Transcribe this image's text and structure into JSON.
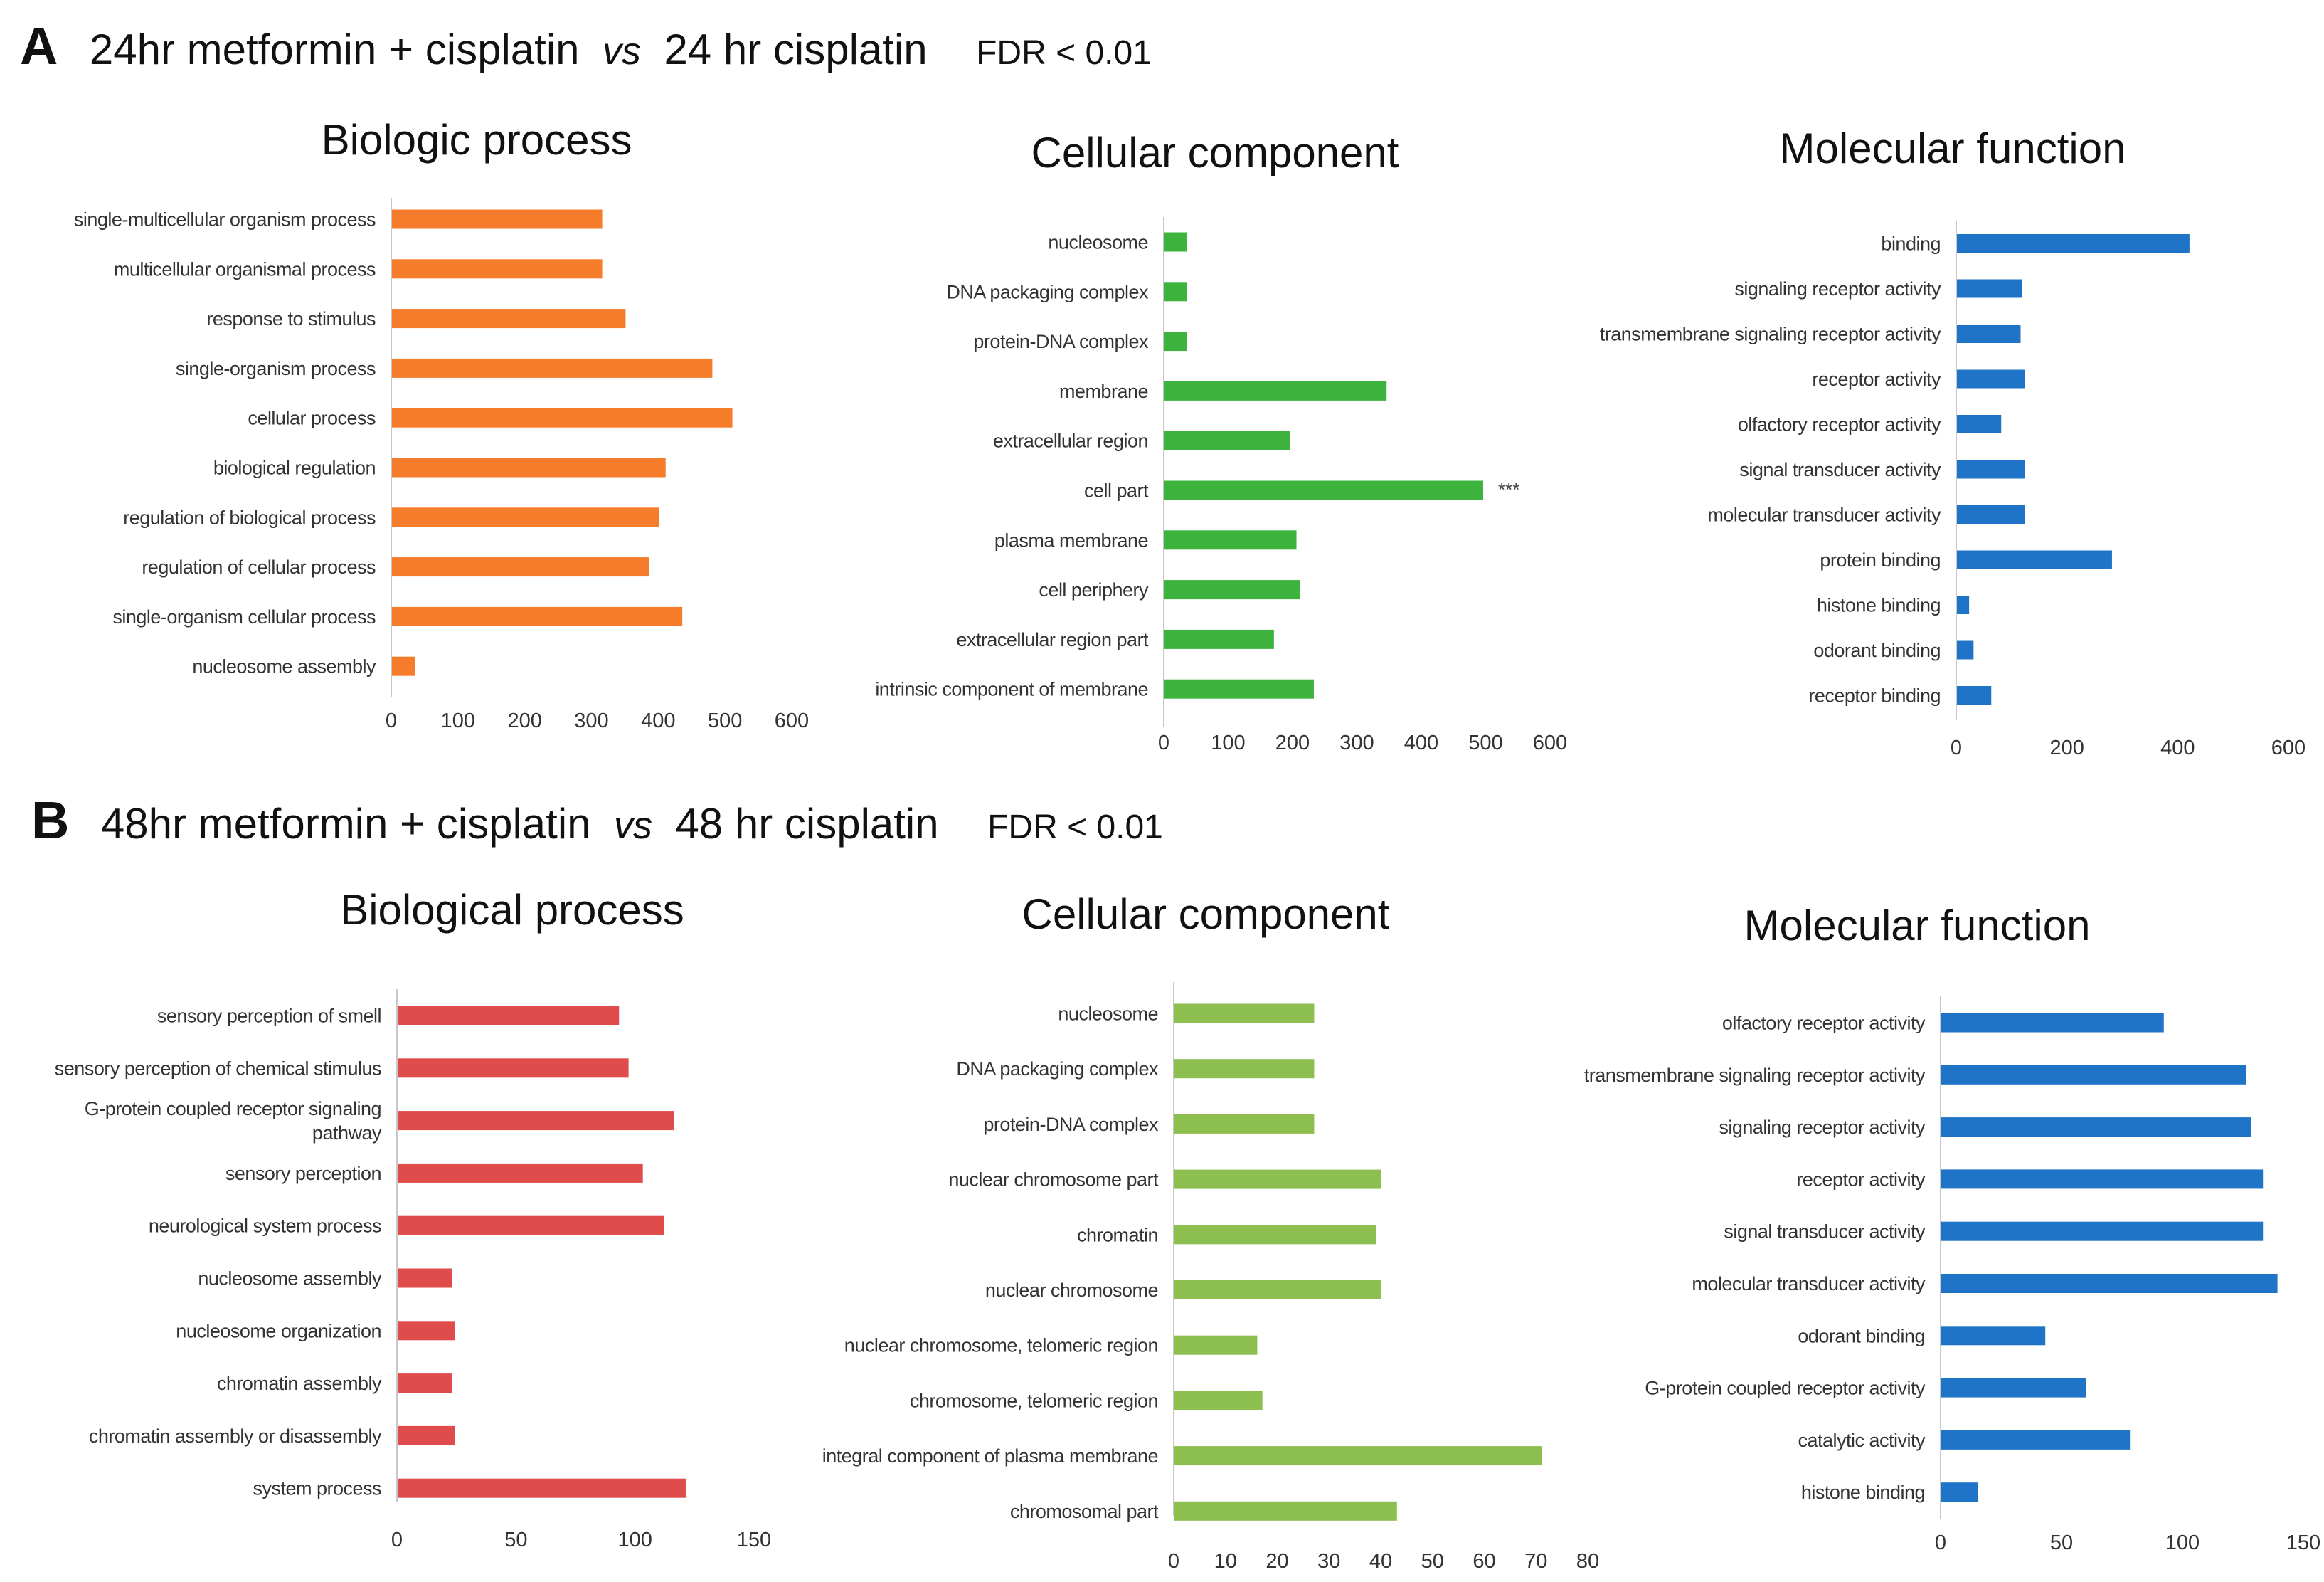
{
  "panels": {
    "a": {
      "letter": "A",
      "title_left": "24hr metformin + cisplatin",
      "vs": "vs",
      "title_right": "24 hr cisplatin",
      "fdr": "FDR < 0.01"
    },
    "b": {
      "letter": "B",
      "title_left": "48hr metformin + cisplatin",
      "vs": "vs",
      "title_right": "48 hr cisplatin",
      "fdr": "FDR < 0.01"
    }
  },
  "chart_data": [
    {
      "id": "a1",
      "type": "bar",
      "orientation": "horizontal",
      "title": "Biologic process",
      "color": "#F47C2A",
      "categories": [
        "single-multicellular organism process",
        "multicellular organismal process",
        "response to stimulus",
        "single-organism process",
        "cellular process",
        "biological regulation",
        "regulation of biological process",
        "regulation of cellular process",
        "single-organism cellular process",
        "nucleosome assembly"
      ],
      "values": [
        315,
        315,
        350,
        480,
        510,
        410,
        400,
        385,
        435,
        35
      ],
      "xlim": [
        0,
        600
      ],
      "ticks": [
        0,
        100,
        200,
        300,
        400,
        500,
        600
      ]
    },
    {
      "id": "a2",
      "type": "bar",
      "orientation": "horizontal",
      "title": "Cellular component",
      "color": "#3DB33D",
      "categories": [
        "nucleosome",
        "DNA packaging complex",
        "protein-DNA complex",
        "membrane",
        "extracellular region",
        "cell part",
        "plasma membrane",
        "cell periphery",
        "extracellular region part",
        "intrinsic component of membrane"
      ],
      "values": [
        35,
        35,
        35,
        345,
        195,
        495,
        205,
        210,
        170,
        232
      ],
      "xlim": [
        0,
        600
      ],
      "ticks": [
        0,
        100,
        200,
        300,
        400,
        500,
        600
      ],
      "annotations": [
        {
          "category": "cell part",
          "text": "***"
        }
      ]
    },
    {
      "id": "a3",
      "type": "bar",
      "orientation": "horizontal",
      "title": "Molecular function",
      "color": "#1F74C8",
      "categories": [
        "binding",
        "signaling receptor activity",
        "transmembrane signaling receptor activity",
        "receptor activity",
        "olfactory receptor activity",
        "signal transducer activity",
        "molecular transducer activity",
        "protein binding",
        "histone binding",
        "odorant binding",
        "receptor binding"
      ],
      "values": [
        420,
        118,
        115,
        123,
        80,
        123,
        123,
        280,
        22,
        30,
        62
      ],
      "xlim": [
        0,
        600
      ],
      "ticks": [
        0,
        200,
        400,
        600
      ]
    },
    {
      "id": "b1",
      "type": "bar",
      "orientation": "horizontal",
      "title": "Biological process",
      "color": "#E04B4B",
      "categories": [
        "sensory perception of smell",
        "sensory perception of chemical stimulus",
        "G-protein coupled receptor signaling pathway",
        "sensory perception",
        "neurological system process",
        "nucleosome assembly",
        "nucleosome organization",
        "chromatin assembly",
        "chromatin assembly or disassembly",
        "system process"
      ],
      "values": [
        93,
        97,
        116,
        103,
        112,
        23,
        24,
        23,
        24,
        121
      ],
      "xlim": [
        0,
        150
      ],
      "ticks": [
        0,
        50,
        100,
        150
      ]
    },
    {
      "id": "b2",
      "type": "bar",
      "orientation": "horizontal",
      "title": "Cellular component",
      "color": "#8CBF4F",
      "categories": [
        "nucleosome",
        "DNA packaging complex",
        "protein-DNA complex",
        "nuclear chromosome part",
        "chromatin",
        "nuclear chromosome",
        "nuclear chromosome, telomeric region",
        "chromosome, telomeric region",
        "integral component of plasma membrane",
        "chromosomal part"
      ],
      "values": [
        27,
        27,
        27,
        40,
        39,
        40,
        16,
        17,
        71,
        43
      ],
      "xlim": [
        0,
        80
      ],
      "ticks": [
        0,
        10,
        20,
        30,
        40,
        50,
        60,
        70,
        80
      ]
    },
    {
      "id": "b3",
      "type": "bar",
      "orientation": "horizontal",
      "title": "Molecular function",
      "color": "#1F74C8",
      "categories": [
        "olfactory receptor activity",
        "transmembrane signaling receptor activity",
        "signaling receptor activity",
        "receptor activity",
        "signal transducer activity",
        "molecular transducer activity",
        "odorant binding",
        "G-protein coupled receptor activity",
        "catalytic activity",
        "histone binding"
      ],
      "values": [
        92,
        126,
        128,
        133,
        133,
        139,
        43,
        60,
        78,
        15
      ],
      "xlim": [
        0,
        150
      ],
      "ticks": [
        0,
        50,
        100,
        150
      ]
    }
  ]
}
